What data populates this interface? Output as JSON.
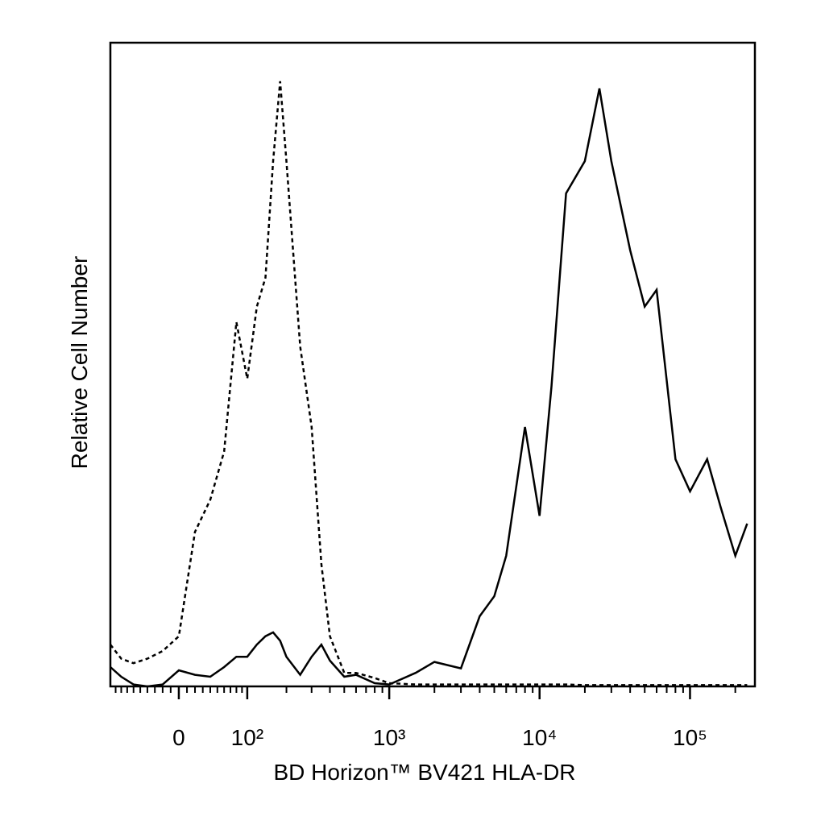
{
  "chart_data": {
    "type": "line",
    "x_label": "BD Horizon™ BV421 HLA-DR",
    "y_label": "Relative Cell Number",
    "xscale": "biexponential",
    "xlim": [
      -100,
      270000
    ],
    "ylim": [
      0,
      100
    ],
    "xticks": [
      0,
      {
        "value": 100,
        "label": "10²"
      },
      {
        "value": 1000,
        "label": "10³"
      },
      {
        "value": 10000,
        "label": "10⁴"
      },
      {
        "value": 100000,
        "label": "10⁵"
      }
    ],
    "xminorticks": [
      -90,
      -80,
      -70,
      -60,
      -50,
      -40,
      -30,
      -20,
      -10,
      10,
      20,
      30,
      40,
      50,
      60,
      70,
      80,
      90,
      200,
      300,
      400,
      500,
      600,
      700,
      800,
      900,
      2000,
      3000,
      4000,
      5000,
      6000,
      7000,
      8000,
      9000,
      20000,
      30000,
      40000,
      50000,
      60000,
      70000,
      80000,
      90000,
      200000
    ],
    "x": [
      -100,
      -80,
      -60,
      -40,
      -20,
      0,
      20,
      40,
      60,
      80,
      100,
      120,
      140,
      160,
      180,
      200,
      250,
      300,
      350,
      400,
      500,
      600,
      800,
      1000,
      1500,
      2000,
      3000,
      4000,
      5000,
      6000,
      8000,
      10000,
      12000,
      15000,
      20000,
      25000,
      30000,
      40000,
      50000,
      60000,
      80000,
      100000,
      130000,
      160000,
      200000,
      240000
    ],
    "series": [
      {
        "color": "#000000",
        "dash": "dashed",
        "values": [
          6.5,
          4.3,
          3.6,
          4.3,
          5.5,
          7.8,
          24,
          29,
          36.5,
          56.6,
          47.8,
          59,
          63.5,
          81.6,
          94,
          81.6,
          52.8,
          40.3,
          19,
          7.8,
          2.1,
          2.1,
          1.3,
          0.5,
          0.3,
          0.3,
          0.3,
          0.3,
          0.3,
          0.3,
          0.3,
          0.3,
          0.3,
          0.3,
          0.2,
          0.2,
          0.2,
          0.2,
          0.2,
          0.2,
          0.2,
          0.2,
          0.2,
          0.2,
          0.2,
          0.2
        ]
      },
      {
        "color": "#000000",
        "dash": "solid",
        "values": [
          3,
          1.5,
          0.3,
          0,
          0.3,
          2.5,
          1.8,
          1.5,
          3,
          4.6,
          4.6,
          6.5,
          7.8,
          8.4,
          7.1,
          4.6,
          1.8,
          4.6,
          6.5,
          4,
          1.5,
          1.8,
          0.5,
          0.3,
          2.1,
          3.8,
          2.8,
          10.9,
          14,
          20.3,
          40.3,
          26.5,
          46.6,
          76.6,
          81.6,
          92.9,
          81.6,
          67.8,
          59,
          61.6,
          35.3,
          30.3,
          35.3,
          27.8,
          20.3,
          25.3
        ]
      }
    ]
  }
}
